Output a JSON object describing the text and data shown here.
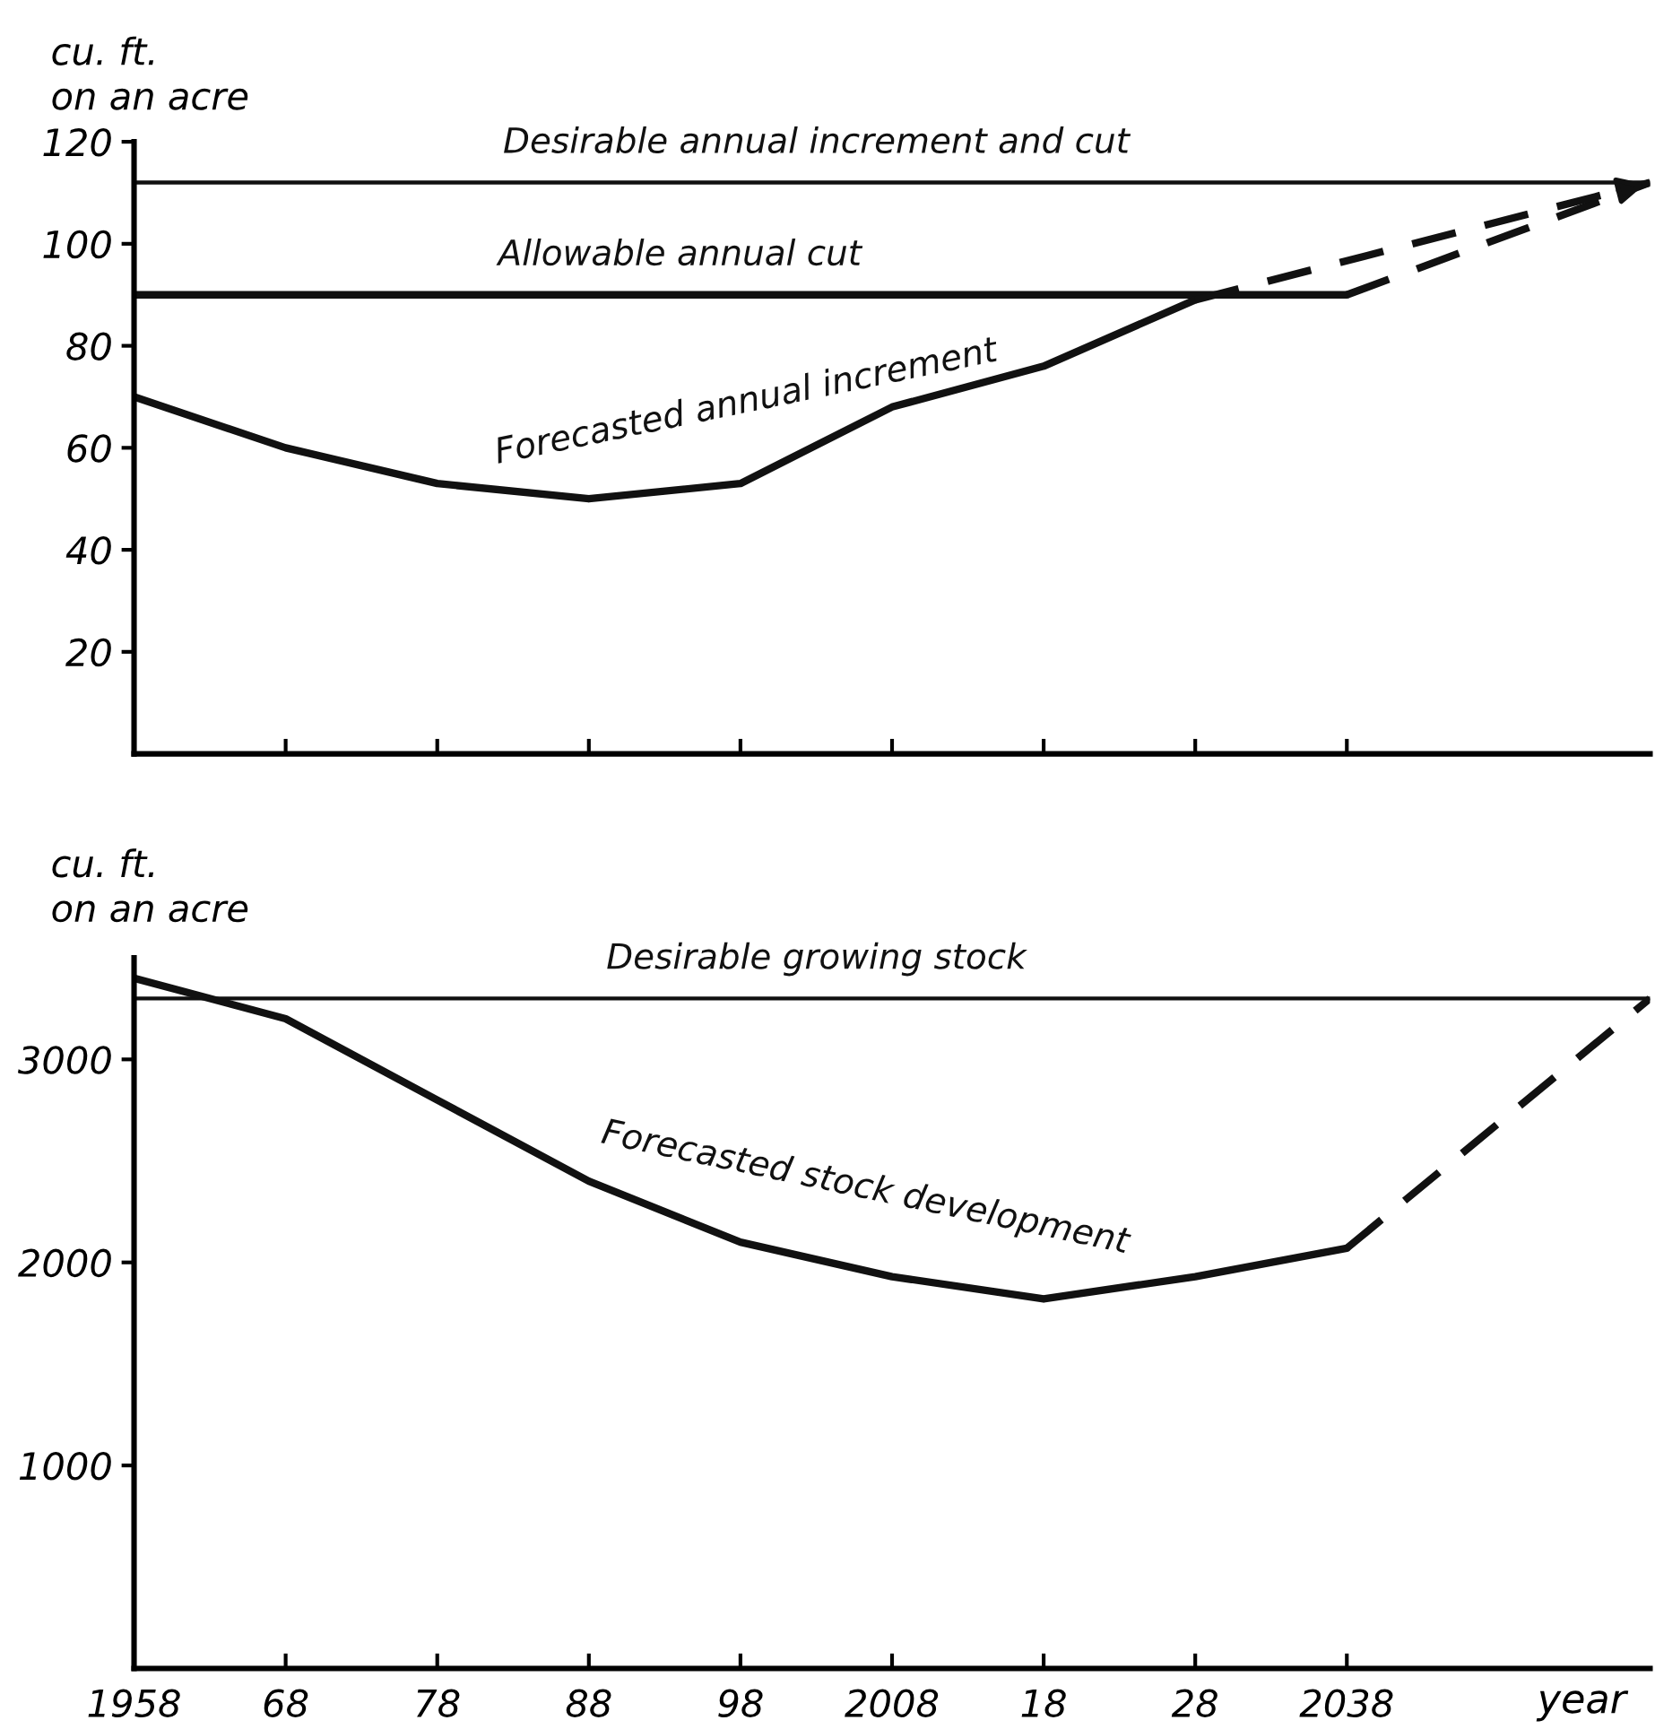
{
  "chart_data": [
    {
      "type": "line",
      "ylabel": "cu. ft.\non an acre",
      "xlim": [
        1958,
        2058
      ],
      "ylim": [
        0,
        120
      ],
      "xticks": [
        {
          "value": 1958,
          "label": null
        },
        {
          "value": 1968,
          "label": null
        },
        {
          "value": 1978,
          "label": null
        },
        {
          "value": 1988,
          "label": null
        },
        {
          "value": 1998,
          "label": null
        },
        {
          "value": 2008,
          "label": null
        },
        {
          "value": 2018,
          "label": null
        },
        {
          "value": 2028,
          "label": null
        },
        {
          "value": 2038,
          "label": null
        }
      ],
      "yticks": [
        20,
        40,
        60,
        80,
        100,
        120
      ],
      "tick_labels": "y",
      "grid": false,
      "legend": false,
      "color": "#111111",
      "series": [
        {
          "name": "Desirable annual increment and cut",
          "x": [
            1958,
            2058
          ],
          "values": [
            112,
            112
          ],
          "line_style": "solid"
        },
        {
          "name": "Allowable annual cut",
          "x": [
            1958,
            2038
          ],
          "values": [
            90,
            90
          ],
          "line_style": "solid"
        },
        {
          "x": [
            2038,
            2058
          ],
          "values": [
            90,
            112
          ],
          "line_style": "dashed"
        },
        {
          "name": "Forecasted annual increment",
          "x": [
            1958,
            1968,
            1978,
            1988,
            1998,
            2008,
            2018,
            2028
          ],
          "values": [
            70,
            60,
            53,
            50,
            53,
            68,
            76,
            89
          ],
          "line_style": "solid"
        },
        {
          "x": [
            2028,
            2058
          ],
          "values": [
            89,
            112
          ],
          "line_style": "dashed"
        }
      ]
    },
    {
      "type": "line",
      "ylabel": "cu. ft.\non an acre",
      "xlabel": "year",
      "xlim": [
        1958,
        2058
      ],
      "ylim": [
        0,
        3500
      ],
      "xticks": [
        1958,
        {
          "value": 1968,
          "label": "68"
        },
        {
          "value": 1978,
          "label": "78"
        },
        {
          "value": 1988,
          "label": "88"
        },
        {
          "value": 1998,
          "label": "98"
        },
        2008,
        {
          "value": 2018,
          "label": "18"
        },
        {
          "value": 2028,
          "label": "28"
        },
        2038
      ],
      "yticks": [
        1000,
        2000,
        3000
      ],
      "grid": false,
      "legend": false,
      "color": "#111111",
      "series": [
        {
          "name": "Desirable growing stock",
          "x": [
            1958,
            2058
          ],
          "values": [
            3300,
            3300
          ],
          "line_style": "solid"
        },
        {
          "name": "Forecasted stock development",
          "x": [
            1958,
            1968,
            1978,
            1988,
            1998,
            2008,
            2018,
            2028,
            2038
          ],
          "values": [
            3400,
            3200,
            2800,
            2400,
            2100,
            1930,
            1820,
            1930,
            2070
          ],
          "line_style": "solid"
        },
        {
          "x": [
            2038,
            2058
          ],
          "values": [
            2070,
            3300
          ],
          "line_style": "dashed"
        }
      ]
    }
  ]
}
